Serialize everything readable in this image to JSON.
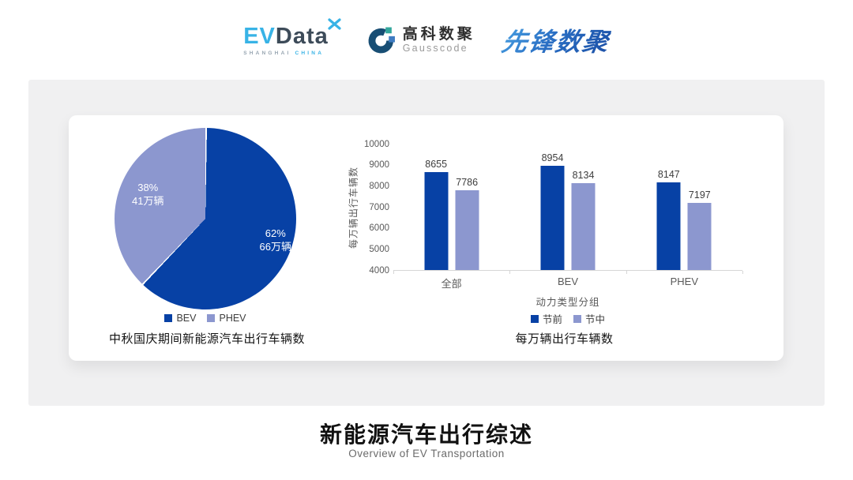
{
  "header": {
    "evdata": {
      "ev": "EV",
      "data": "Data",
      "sub_left": "SHANGHAI",
      "sub_right": "CHINA"
    },
    "gausscode": {
      "cn": "高科数聚",
      "en": "Gausscode"
    },
    "xianfeng": {
      "text": "先锋数聚"
    }
  },
  "colors": {
    "primary": "#0741A5",
    "secondary": "#8C97CF",
    "band_gray": "#F0F0F1",
    "axis_text": "#595959"
  },
  "chart_data": [
    {
      "type": "pie",
      "title": "中秋国庆期间新能源汽车出行车辆数",
      "slices": [
        {
          "label": "BEV",
          "percent": 62,
          "percent_label": "62%",
          "amount_label": "66万辆",
          "color": "#0741A5"
        },
        {
          "label": "PHEV",
          "percent": 38,
          "percent_label": "38%",
          "amount_label": "41万辆",
          "color": "#8C97CF"
        }
      ],
      "start_angle_deg": 0,
      "direction": "clockwise",
      "legend_position": "bottom"
    },
    {
      "type": "bar",
      "title": "每万辆出行车辆数",
      "categories": [
        "全部",
        "BEV",
        "PHEV"
      ],
      "series": [
        {
          "name": "节前",
          "color": "#0741A5",
          "values": [
            8655,
            8954,
            8147
          ]
        },
        {
          "name": "节中",
          "color": "#8C97CF",
          "values": [
            7786,
            8134,
            7197
          ]
        }
      ],
      "ylabel": "每万辆出行车辆数",
      "xlabel": "动力类型分组",
      "ylim": [
        4000,
        10000
      ],
      "yticks": [
        4000,
        5000,
        6000,
        7000,
        8000,
        9000,
        10000
      ],
      "grid": false,
      "legend_position": "bottom"
    }
  ],
  "footer": {
    "title": "新能源汽车出行综述",
    "subtitle": "Overview of EV Transportation"
  }
}
